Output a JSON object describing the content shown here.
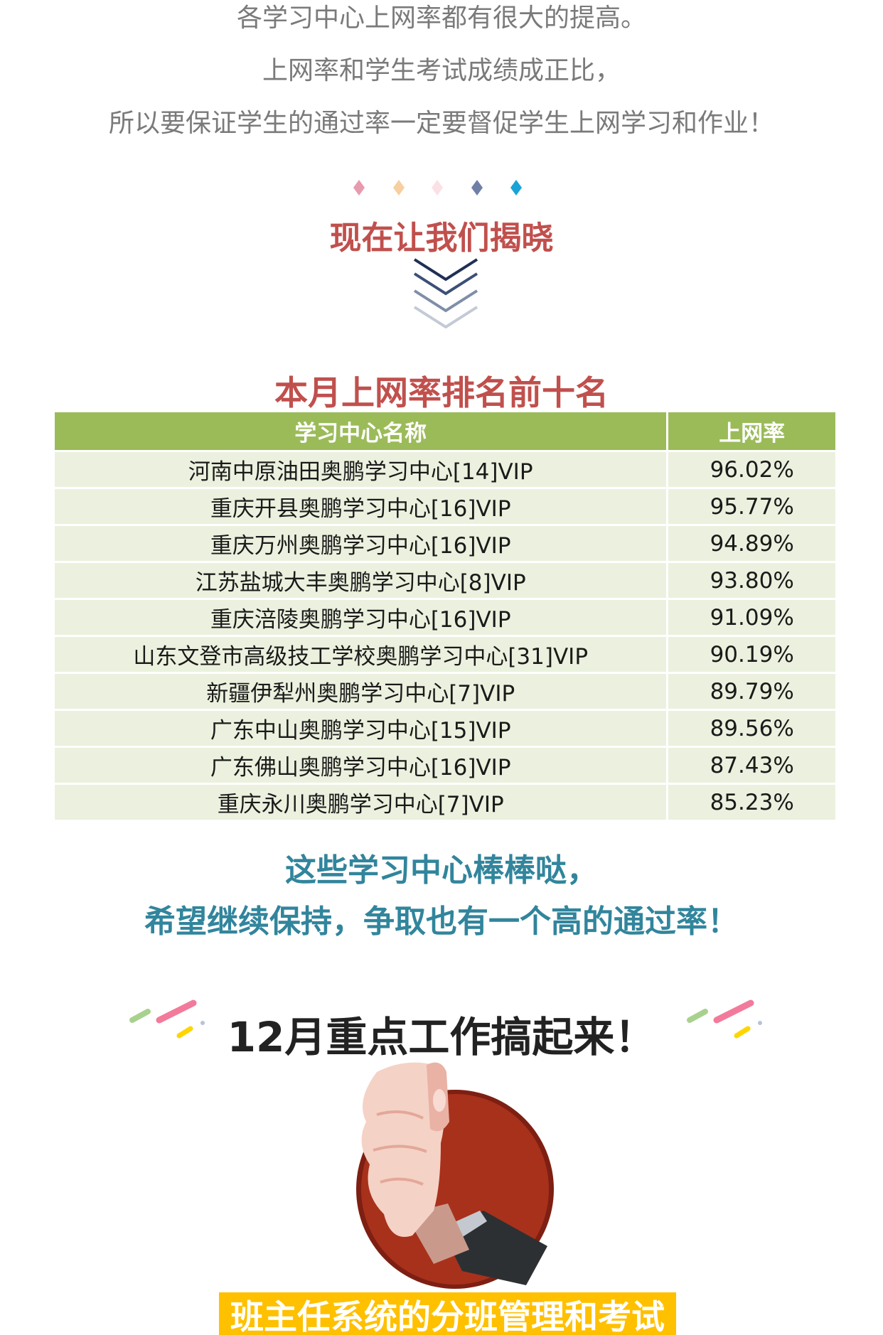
{
  "intro": {
    "lines": [
      "各学习中心上网率都有很大的提高。",
      "上网率和学生考试成绩成正比，",
      "所以要保证学生的通过率一定要督促学生上网学习和作业！"
    ]
  },
  "divider": {
    "diamond_colors": [
      "#e89aae",
      "#f7cfa0",
      "#fbe1e6",
      "#6f7fa8",
      "#1aa3d6"
    ],
    "chevron_colors": [
      "#1f2f55",
      "#3b4f78",
      "#7f8ea8",
      "#c3cad6"
    ]
  },
  "reveal_title": "现在让我们揭晓",
  "ranking": {
    "title": "本月上网率排名前十名",
    "headers": [
      "学习中心名称",
      "上网率"
    ],
    "rows": [
      {
        "name": "河南中原油田奥鹏学习中心[14]VIP",
        "rate": "96.02%"
      },
      {
        "name": "重庆开县奥鹏学习中心[16]VIP",
        "rate": "95.77%"
      },
      {
        "name": "重庆万州奥鹏学习中心[16]VIP",
        "rate": "94.89%"
      },
      {
        "name": "江苏盐城大丰奥鹏学习中心[8]VIP",
        "rate": "93.80%"
      },
      {
        "name": "重庆涪陵奥鹏学习中心[16]VIP",
        "rate": "91.09%"
      },
      {
        "name": "山东文登市高级技工学校奥鹏学习中心[31]VIP",
        "rate": "90.19%"
      },
      {
        "name": "新疆伊犁州奥鹏学习中心[7]VIP",
        "rate": "89.79%"
      },
      {
        "name": "广东中山奥鹏学习中心[15]VIP",
        "rate": "89.56%"
      },
      {
        "name": "广东佛山奥鹏学习中心[16]VIP",
        "rate": "87.43%"
      },
      {
        "name": "重庆永川奥鹏学习中心[7]VIP",
        "rate": "85.23%"
      }
    ],
    "header_color": "#9bbb59",
    "row_color": "#ebf1de"
  },
  "praise": {
    "lines": [
      "这些学习中心棒棒哒，",
      "希望继续保持，争取也有一个高的通过率！"
    ]
  },
  "work_title": "12月重点工作搞起来！",
  "banner_text": "班主任系统的分班管理和考试"
}
